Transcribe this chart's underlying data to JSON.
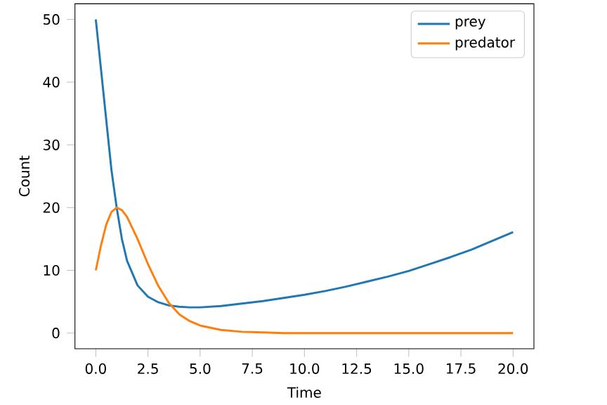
{
  "chart_data": {
    "type": "line",
    "xlabel": "Time",
    "ylabel": "Count",
    "x": [
      0,
      0.25,
      0.5,
      0.75,
      1,
      1.25,
      1.5,
      2,
      2.5,
      3,
      3.5,
      4,
      4.5,
      5,
      6,
      7,
      8,
      9,
      10,
      11,
      12,
      13,
      14,
      15,
      16,
      17,
      18,
      19,
      20
    ],
    "series": [
      {
        "name": "prey",
        "color": "#1f77b4",
        "values": [
          50,
          42,
          34,
          26,
          20,
          15,
          11.5,
          7.6,
          5.8,
          4.9,
          4.4,
          4.2,
          4.1,
          4.1,
          4.3,
          4.7,
          5.1,
          5.6,
          6.1,
          6.7,
          7.4,
          8.2,
          9.0,
          9.9,
          11.0,
          12.1,
          13.3,
          14.7,
          16.1
        ]
      },
      {
        "name": "predator",
        "color": "#ff7f0e",
        "values": [
          10,
          14,
          17.3,
          19.3,
          20,
          19.6,
          18.5,
          15,
          11,
          7.5,
          4.8,
          3,
          1.9,
          1.2,
          0.5,
          0.2,
          0.1,
          0,
          0,
          0,
          0,
          0,
          0,
          0,
          0,
          0,
          0,
          0,
          0
        ]
      }
    ],
    "xlim": [
      -1,
      21
    ],
    "ylim": [
      -2.5,
      52.5
    ],
    "xticks": [
      {
        "value": 0,
        "label": "0.0"
      },
      {
        "value": 2.5,
        "label": "2.5"
      },
      {
        "value": 5,
        "label": "5.0"
      },
      {
        "value": 7.5,
        "label": "7.5"
      },
      {
        "value": 10,
        "label": "10.0"
      },
      {
        "value": 12.5,
        "label": "12.5"
      },
      {
        "value": 15,
        "label": "15.0"
      },
      {
        "value": 17.5,
        "label": "17.5"
      },
      {
        "value": 20,
        "label": "20.0"
      }
    ],
    "yticks": [
      0,
      10,
      20,
      30,
      40,
      50
    ],
    "legend": "top right",
    "marker": "none",
    "line_style": "solid"
  }
}
